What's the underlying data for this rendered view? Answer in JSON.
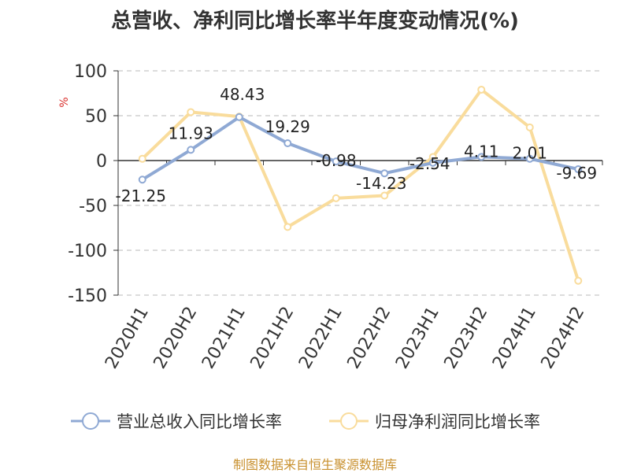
{
  "title": "总营收、净利同比增长率半年度变动情况(%)",
  "source": "制图数据来自恒生聚源数据库",
  "colors": {
    "revenue": "#8fa9d4",
    "net_profit": "#f9dc9c",
    "grid": "#c8c8c8",
    "axis": "#333333",
    "source": "#c8902e",
    "unit": "#d9302c"
  },
  "chart_data": {
    "type": "line",
    "title": "总营收、净利同比增长率半年度变动情况(%)",
    "ylabel": "%",
    "ylim": [
      -150,
      100
    ],
    "yticks": [
      100,
      50,
      0,
      -50,
      -100,
      -150
    ],
    "grid": true,
    "legend_position": "bottom",
    "categories": [
      "2020H1",
      "2020H2",
      "2021H1",
      "2021H2",
      "2022H1",
      "2022H2",
      "2023H1",
      "2023H2",
      "2024H1",
      "2024H2"
    ],
    "series": [
      {
        "name": "营业总收入同比增长率",
        "color": "#8fa9d4",
        "values": [
          -21.25,
          11.93,
          48.43,
          19.29,
          -0.98,
          -14.23,
          -2.54,
          4.11,
          2.01,
          -9.69
        ],
        "labels": [
          "-21.25",
          "11.93",
          "48.43",
          "19.29",
          "-0.98",
          "-14.23",
          "-2.54",
          "4.11",
          "2.01",
          "-9.69"
        ]
      },
      {
        "name": "归母净利润同比增长率",
        "color": "#f9dc9c",
        "values": [
          2,
          54,
          49,
          -74,
          -42,
          -39,
          4,
          79,
          37,
          -134
        ]
      }
    ]
  }
}
